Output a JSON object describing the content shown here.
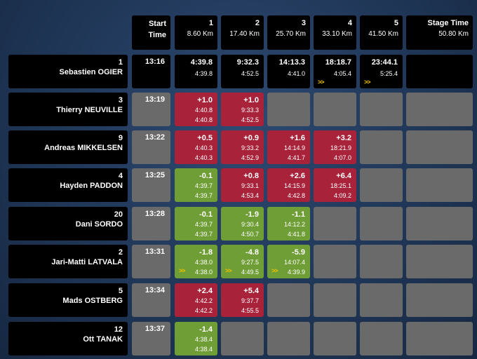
{
  "header": {
    "start_time": "Start\nTime",
    "start_line1": "Start",
    "start_line2": "Time",
    "splits": [
      {
        "number": "1",
        "distance": "8.60 Km"
      },
      {
        "number": "2",
        "distance": "17.40 Km"
      },
      {
        "number": "3",
        "distance": "25.70 Km"
      },
      {
        "number": "4",
        "distance": "33.10 Km"
      },
      {
        "number": "5",
        "distance": "41.50 Km"
      }
    ],
    "stage_time": {
      "label": "Stage Time",
      "distance": "50.80 Km"
    }
  },
  "rows": [
    {
      "number": "1",
      "name": "Sebastien OGIER",
      "start": "13:16",
      "leader": true,
      "splits": [
        {
          "main": "4:39.8",
          "l2": "4:39.8",
          "chev": false,
          "color": "black"
        },
        {
          "main": "9:32.3",
          "l2": "4:52.5",
          "chev": false,
          "color": "black"
        },
        {
          "main": "14:13.3",
          "l2": "4:41.0",
          "chev": false,
          "color": "black"
        },
        {
          "main": "18:18.7",
          "l2": "4:05.4",
          "chev": true,
          "color": "black"
        },
        {
          "main": "23:44.1",
          "l2": "5:25.4",
          "chev": true,
          "color": "black"
        },
        null
      ]
    },
    {
      "number": "3",
      "name": "Thierry NEUVILLE",
      "start": "13:19",
      "splits": [
        {
          "main": "+1.0",
          "l2": "4:40.8",
          "l3": "4:40.8",
          "chev": false,
          "color": "red"
        },
        {
          "main": "+1.0",
          "l2": "9:33.3",
          "l3": "4:52.5",
          "chev": false,
          "color": "red"
        },
        null,
        null,
        null,
        null
      ]
    },
    {
      "number": "9",
      "name": "Andreas MIKKELSEN",
      "start": "13:22",
      "splits": [
        {
          "main": "+0.5",
          "l2": "4:40.3",
          "l3": "4:40.3",
          "chev": false,
          "color": "red"
        },
        {
          "main": "+0.9",
          "l2": "9:33.2",
          "l3": "4:52.9",
          "chev": false,
          "color": "red"
        },
        {
          "main": "+1.6",
          "l2": "14:14.9",
          "l3": "4:41.7",
          "chev": false,
          "color": "red"
        },
        {
          "main": "+3.2",
          "l2": "18:21.9",
          "l3": "4:07.0",
          "chev": false,
          "color": "red"
        },
        null,
        null
      ]
    },
    {
      "number": "4",
      "name": "Hayden PADDON",
      "start": "13:25",
      "splits": [
        {
          "main": "-0.1",
          "l2": "4:39.7",
          "l3": "4:39.7",
          "chev": false,
          "color": "green"
        },
        {
          "main": "+0.8",
          "l2": "9:33.1",
          "l3": "4:53.4",
          "chev": false,
          "color": "red"
        },
        {
          "main": "+2.6",
          "l2": "14:15.9",
          "l3": "4:42.8",
          "chev": false,
          "color": "red"
        },
        {
          "main": "+6.4",
          "l2": "18:25.1",
          "l3": "4:09.2",
          "chev": false,
          "color": "red"
        },
        null,
        null
      ]
    },
    {
      "number": "20",
      "name": "Dani SORDO",
      "start": "13:28",
      "splits": [
        {
          "main": "-0.1",
          "l2": "4:39.7",
          "l3": "4:39.7",
          "chev": false,
          "color": "green"
        },
        {
          "main": "-1.9",
          "l2": "9:30.4",
          "l3": "4:50.7",
          "chev": false,
          "color": "green"
        },
        {
          "main": "-1.1",
          "l2": "14:12.2",
          "l3": "4:41.8",
          "chev": false,
          "color": "green"
        },
        null,
        null,
        null
      ]
    },
    {
      "number": "2",
      "name": "Jari-Matti LATVALA",
      "start": "13:31",
      "splits": [
        {
          "main": "-1.8",
          "l2": "4:38.0",
          "l3": "4:38.0",
          "chev": true,
          "color": "green"
        },
        {
          "main": "-4.8",
          "l2": "9:27.5",
          "l3": "4:49.5",
          "chev": true,
          "color": "green"
        },
        {
          "main": "-5.9",
          "l2": "14:07.4",
          "l3": "4:39.9",
          "chev": true,
          "color": "green"
        },
        null,
        null,
        null
      ]
    },
    {
      "number": "5",
      "name": "Mads OSTBERG",
      "start": "13:34",
      "splits": [
        {
          "main": "+2.4",
          "l2": "4:42.2",
          "l3": "4:42.2",
          "chev": false,
          "color": "red"
        },
        {
          "main": "+5.4",
          "l2": "9:37.7",
          "l3": "4:55.5",
          "chev": false,
          "color": "red"
        },
        null,
        null,
        null,
        null
      ]
    },
    {
      "number": "12",
      "name": "Ott TANAK",
      "start": "13:37",
      "splits": [
        {
          "main": "-1.4",
          "l2": "4:38.4",
          "l3": "4:38.4",
          "chev": false,
          "color": "green"
        },
        null,
        null,
        null,
        null,
        null
      ]
    }
  ],
  "chevron_glyph": ">>"
}
